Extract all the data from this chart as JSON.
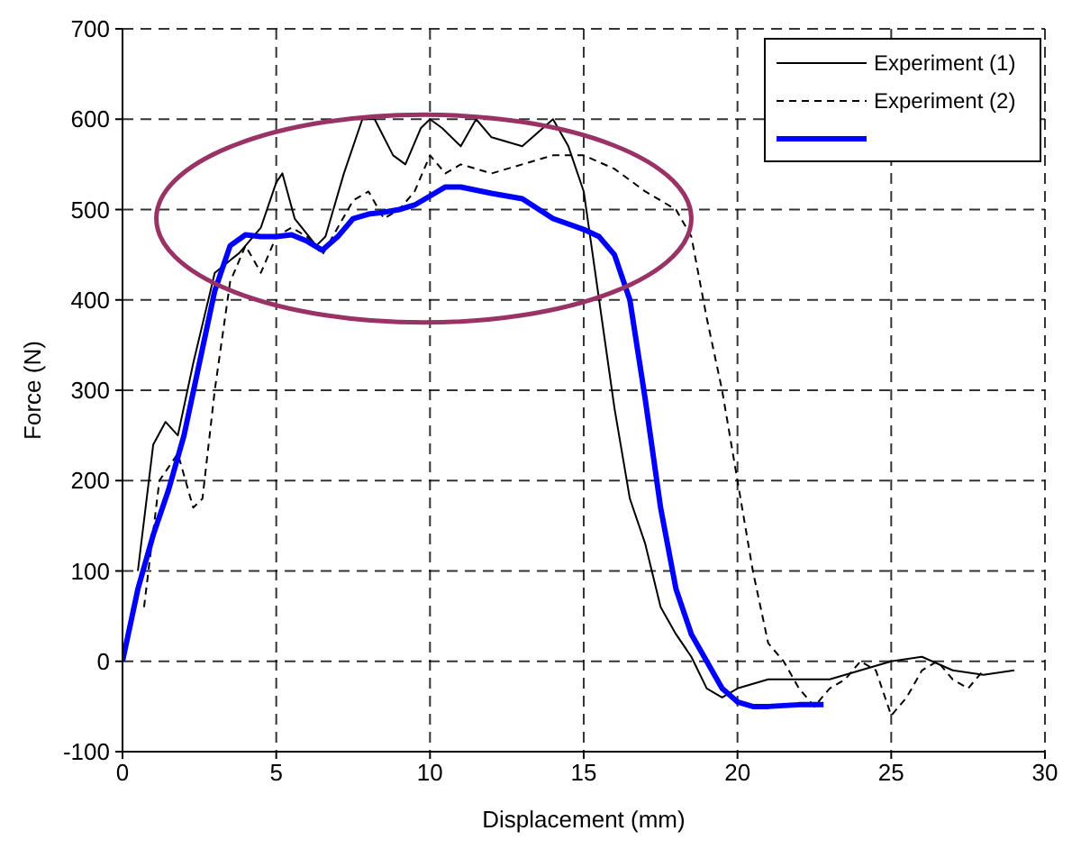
{
  "chart_data": {
    "type": "line",
    "xlabel": "Displacement (mm)",
    "ylabel": "Force (N)",
    "xlim": [
      0,
      30
    ],
    "xticks": [
      0,
      5,
      10,
      15,
      20,
      25,
      30
    ],
    "ylim": [
      -100,
      700
    ],
    "yticks": [
      -100,
      0,
      100,
      200,
      300,
      400,
      500,
      600,
      700
    ],
    "grid": true,
    "legend": "top right",
    "marker": "none",
    "series": [
      {
        "name": "Experiment (1)",
        "color": "#000000",
        "line_style": "solid",
        "x": [
          0.5,
          1,
          1.4,
          1.8,
          2.3,
          3,
          3.8,
          4.5,
          5,
          5.2,
          5.6,
          6.3,
          6.6,
          7.2,
          7.8,
          8.2,
          8.8,
          9.2,
          9.7,
          10,
          10.4,
          11,
          11.5,
          12,
          13,
          14,
          14.5,
          15,
          15.5,
          16,
          16.5,
          17,
          17.5,
          18,
          18.5,
          19,
          19.5,
          20,
          21,
          22,
          23,
          24,
          25,
          26,
          27,
          28,
          29
        ],
        "values": [
          100,
          240,
          265,
          250,
          330,
          430,
          452,
          480,
          530,
          540,
          490,
          460,
          470,
          540,
          600,
          600,
          560,
          550,
          590,
          600,
          590,
          570,
          600,
          580,
          570,
          600,
          570,
          520,
          400,
          280,
          180,
          130,
          60,
          30,
          5,
          -30,
          -40,
          -30,
          -20,
          -20,
          -20,
          -10,
          0,
          5,
          -10,
          -15,
          -10
        ]
      },
      {
        "name": "Experiment (2)",
        "color": "#000000",
        "line_style": "dashed",
        "x": [
          0.7,
          1.2,
          1.8,
          2.3,
          2.6,
          3,
          3.5,
          4,
          4.5,
          5,
          5.5,
          6,
          6.5,
          7,
          7.5,
          8,
          8.5,
          9,
          9.5,
          10,
          10.5,
          11,
          12,
          13,
          14,
          15,
          16,
          17,
          18,
          18.5,
          19,
          19.5,
          20,
          20.5,
          21,
          21.5,
          22,
          22.5,
          23,
          23.5,
          24,
          24.5,
          25,
          25.5,
          26,
          26.5,
          27,
          27.5,
          28
        ],
        "values": [
          60,
          200,
          230,
          170,
          180,
          300,
          420,
          460,
          430,
          470,
          480,
          470,
          450,
          480,
          510,
          520,
          490,
          500,
          520,
          560,
          540,
          550,
          540,
          550,
          560,
          560,
          545,
          520,
          500,
          470,
          380,
          300,
          200,
          100,
          20,
          0,
          -30,
          -50,
          -30,
          -20,
          0,
          -10,
          -60,
          -40,
          -10,
          0,
          -20,
          -30,
          -10
        ]
      },
      {
        "color": "#0000ff",
        "line_style": "solid",
        "x": [
          0,
          0.5,
          1,
          1.5,
          2,
          2.5,
          3,
          3.5,
          4,
          4.5,
          5,
          5.5,
          6,
          6.5,
          7,
          7.5,
          8,
          8.5,
          9,
          9.5,
          10,
          10.5,
          11,
          12,
          13,
          14,
          15,
          15.5,
          16,
          16.5,
          17,
          17.5,
          18,
          18.5,
          19,
          19.5,
          20,
          20.5,
          21,
          22,
          22.8
        ],
        "values": [
          0,
          80,
          140,
          190,
          250,
          330,
          410,
          460,
          472,
          470,
          470,
          472,
          465,
          455,
          470,
          490,
          495,
          497,
          500,
          505,
          515,
          525,
          525,
          518,
          512,
          490,
          478,
          470,
          450,
          400,
          290,
          170,
          80,
          30,
          0,
          -30,
          -45,
          -50,
          -50,
          -48,
          -48
        ]
      }
    ]
  }
}
